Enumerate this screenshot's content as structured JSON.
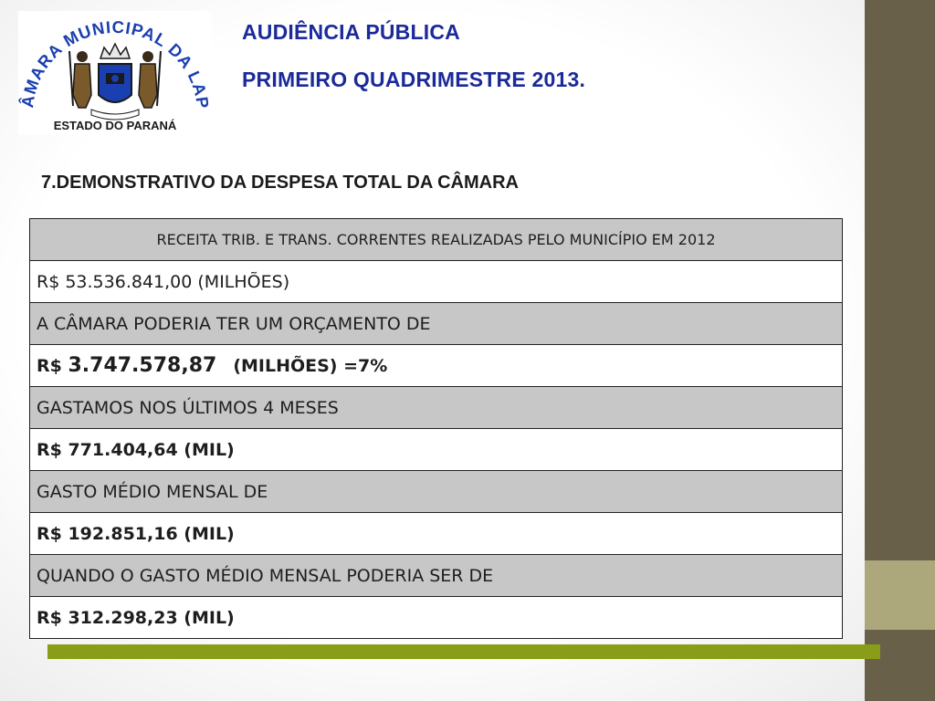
{
  "logo": {
    "arc_text": "CÂMARA MUNICIPAL DA LAPA",
    "bottom_text": "ESTADO DO PARANÁ",
    "colors": {
      "blue": "#1a3fb0",
      "dark": "#2a2a2a",
      "red": "#c0392b"
    }
  },
  "header": {
    "line1": "AUDIÊNCIA PÚBLICA",
    "line2": "PRIMEIRO QUADRIMESTRE 2013."
  },
  "section": {
    "heading": "7.DEMONSTRATIVO DA DESPESA TOTAL DA CÂMARA"
  },
  "table": {
    "header": "RECEITA TRIB. E TRANS. CORRENTES REALIZADAS PELO MUNICÍPIO EM 2012",
    "revenue": {
      "prefix": "R$ ",
      "amount": "53.536.841,00",
      "suffix": " (MILHÕES)"
    },
    "budget_label": "A CÂMARA PODERIA TER UM ORÇAMENTO DE",
    "budget": {
      "prefix": "R$ ",
      "amount": "3.747.578,87",
      "suffix": "(MILHÕES) =7%"
    },
    "spent_label": "GASTAMOS NOS ÚLTIMOS 4 MESES",
    "spent_value": "R$ 771.404,64 (MIL)",
    "avg_label": "GASTO MÉDIO MENSAL DE",
    "avg_value": "R$ 192.851,16 (MIL)",
    "allowed_label": "QUANDO O GASTO MÉDIO MENSAL PODERIA SER DE",
    "allowed_value": "R$ 312.298,23 (MIL)"
  },
  "theme": {
    "title_color": "#1b2a9a",
    "side_band": "#686049",
    "side_band_accent": "#ada77c",
    "underbar": "#8a9d18",
    "row_gray": "#c7c7c7"
  }
}
